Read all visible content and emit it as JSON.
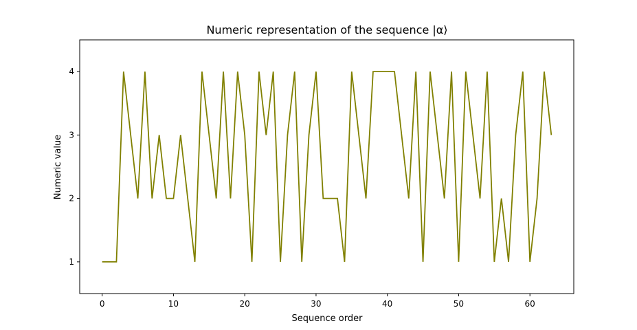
{
  "chart_data": {
    "type": "line",
    "title": "Numeric representation of the sequence |α⟩",
    "xlabel": "Sequence order",
    "ylabel": "Numeric value",
    "xlim": [
      -3.15,
      66.15
    ],
    "ylim": [
      0.5,
      4.5
    ],
    "xticks": [
      0,
      10,
      20,
      30,
      40,
      50,
      60
    ],
    "yticks": [
      1,
      2,
      3,
      4
    ],
    "grid": false,
    "series": [
      {
        "color": "#808000",
        "x": [
          0,
          1,
          2,
          3,
          4,
          5,
          6,
          7,
          8,
          9,
          10,
          11,
          12,
          13,
          14,
          15,
          16,
          17,
          18,
          19,
          20,
          21,
          22,
          23,
          24,
          25,
          26,
          27,
          28,
          29,
          30,
          31,
          32,
          33,
          34,
          35,
          36,
          37,
          38,
          39,
          40,
          41,
          42,
          43,
          44,
          45,
          46,
          47,
          48,
          49,
          50,
          51,
          52,
          53,
          54,
          55,
          56,
          57,
          58,
          59,
          60,
          61,
          62,
          63
        ],
        "values": [
          1,
          1,
          1,
          4,
          3,
          2,
          4,
          2,
          3,
          2,
          2,
          3,
          2,
          1,
          4,
          3,
          2,
          4,
          2,
          4,
          3,
          1,
          4,
          3,
          4,
          1,
          3,
          4,
          1,
          3,
          4,
          2,
          2,
          2,
          1,
          4,
          3,
          2,
          4,
          4,
          4,
          4,
          3,
          2,
          4,
          1,
          4,
          3,
          2,
          4,
          1,
          4,
          3,
          2,
          4,
          1,
          2,
          1,
          3,
          4,
          1,
          2,
          4,
          3
        ]
      }
    ]
  }
}
